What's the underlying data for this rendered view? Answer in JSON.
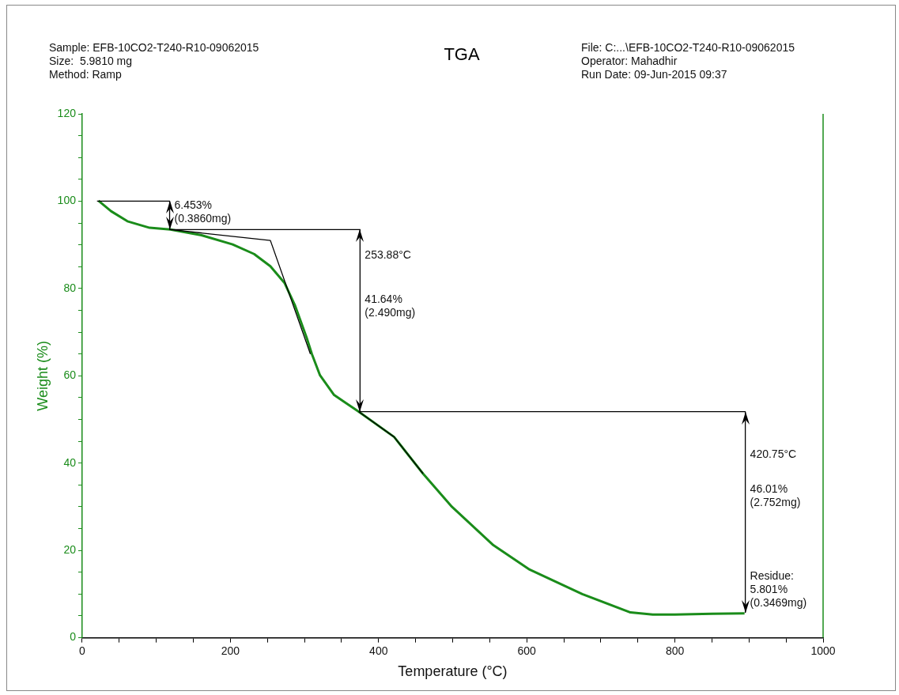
{
  "chart_data": {
    "type": "line",
    "title": "TGA",
    "xlabel": "Temperature (°C)",
    "ylabel": "Weight (%)",
    "xlim": [
      0,
      1000
    ],
    "xticks": [
      0,
      {
        "value": 50,
        "label": null
      },
      {
        "value": 100,
        "label": null
      },
      {
        "value": 150,
        "label": null
      },
      200,
      {
        "value": 250,
        "label": null
      },
      {
        "value": 300,
        "label": null
      },
      {
        "value": 350,
        "label": null
      },
      400,
      {
        "value": 450,
        "label": null
      },
      {
        "value": 500,
        "label": null
      },
      {
        "value": 550,
        "label": null
      },
      600,
      {
        "value": 650,
        "label": null
      },
      {
        "value": 700,
        "label": null
      },
      {
        "value": 750,
        "label": null
      },
      800,
      {
        "value": 850,
        "label": null
      },
      {
        "value": 900,
        "label": null
      },
      {
        "value": 950,
        "label": null
      },
      1000
    ],
    "ylim": [
      0,
      120
    ],
    "yticks": [
      0,
      {
        "value": 5,
        "label": null
      },
      {
        "value": 10,
        "label": null
      },
      {
        "value": 15,
        "label": null
      },
      20,
      {
        "value": 25,
        "label": null
      },
      {
        "value": 30,
        "label": null
      },
      {
        "value": 35,
        "label": null
      },
      40,
      {
        "value": 45,
        "label": null
      },
      {
        "value": 50,
        "label": null
      },
      {
        "value": 55,
        "label": null
      },
      60,
      {
        "value": 65,
        "label": null
      },
      {
        "value": 70,
        "label": null
      },
      {
        "value": 75,
        "label": null
      },
      80,
      {
        "value": 85,
        "label": null
      },
      {
        "value": 90,
        "label": null
      },
      {
        "value": 95,
        "label": null
      },
      100,
      {
        "value": 105,
        "label": null
      },
      {
        "value": 110,
        "label": null
      },
      {
        "value": 115,
        "label": null
      },
      120
    ],
    "grid": false,
    "legend": false,
    "marker": "none",
    "line_style": "solid",
    "series": [
      {
        "type": "line",
        "color": "#1a8c1a",
        "x": [
          22,
          39,
          61,
          91,
          119,
          161,
          203,
          232,
          254,
          273,
          287,
          303,
          310,
          321,
          340,
          373,
          421,
          460,
          499,
          555,
          604,
          675,
          740,
          770,
          800,
          850,
          894
        ],
        "values": [
          100.1,
          97.7,
          95.4,
          93.9,
          93.5,
          92.2,
          90.1,
          87.9,
          85.1,
          81.3,
          76.2,
          68.7,
          65,
          60.1,
          55.6,
          51.8,
          46,
          37.6,
          30,
          21.2,
          15.6,
          10,
          5.8,
          5.3,
          5.3,
          5.5,
          5.6
        ]
      },
      {
        "type": "line",
        "color": "#000000",
        "x": [
          20,
          118
        ],
        "values": [
          100,
          100
        ]
      },
      {
        "type": "line",
        "color": "#000000",
        "x": [
          118,
          118
        ],
        "values": [
          100,
          93.5
        ]
      },
      {
        "type": "line",
        "color": "#000000",
        "x": [
          118,
          375
        ],
        "values": [
          93.5,
          93.5
        ]
      },
      {
        "type": "line",
        "color": "#000000",
        "x": [
          375,
          375
        ],
        "values": [
          93.5,
          51.8
        ]
      },
      {
        "type": "line",
        "color": "#000000",
        "x": [
          375,
          895
        ],
        "values": [
          51.8,
          51.8
        ]
      },
      {
        "type": "line",
        "color": "#000000",
        "x": [
          895,
          895
        ],
        "values": [
          51.8,
          5.8
        ]
      },
      {
        "type": "line",
        "color": "#000000",
        "x": [
          119,
          254,
          308
        ],
        "values": [
          93.5,
          91,
          65
        ]
      },
      {
        "type": "line",
        "color": "#000000",
        "x": [
          373,
          421,
          460
        ],
        "values": [
          51.8,
          46,
          37.6
        ]
      }
    ],
    "annotations": [
      "Sample: EFB-10CO2-T240-R10-09062015\nSize:  5.9810 mg\nMethod: Ramp",
      "File: C:...\\EFB-10CO2-T240-R10-09062015\nOperator: Mahadhir\nRun Date: 09-Jun-2015 09:37",
      {
        "text": "6.453%\n(0.3860mg)",
        "x": 118,
        "y": 99
      },
      {
        "text": "253.88°C",
        "x": 375,
        "y": 87.5
      },
      {
        "text": "41.64%\n(2.490mg)",
        "x": 375,
        "y": 77.5
      },
      {
        "text": "420.75°C",
        "x": 895,
        "y": 42
      },
      {
        "text": "46.01%\n(2.752mg)",
        "x": 895,
        "y": 34
      },
      {
        "text": "Residue:\n5.801%\n(0.3469mg)",
        "x": 895,
        "y": 14
      }
    ]
  }
}
